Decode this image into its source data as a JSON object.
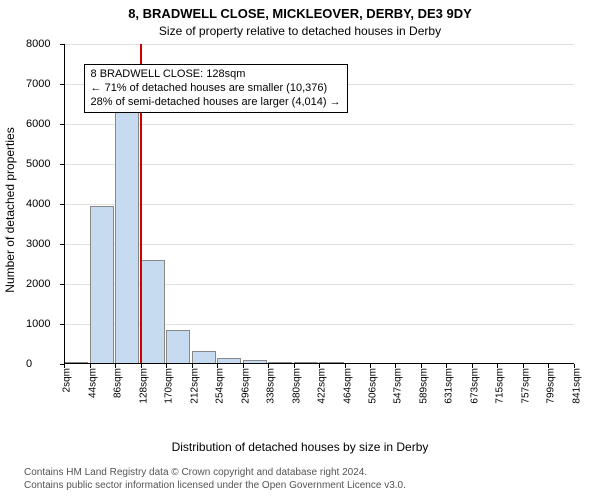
{
  "chart": {
    "type": "histogram",
    "title_main": "8, BRADWELL CLOSE, MICKLEOVER, DERBY, DE3 9DY",
    "title_sub": "Size of property relative to detached houses in Derby",
    "title_fontsize_main": 13,
    "title_fontsize_sub": 12,
    "ylabel": "Number of detached properties",
    "xlabel": "Distribution of detached houses by size in Derby",
    "label_fontsize": 12,
    "ylim": [
      0,
      8000
    ],
    "ytick_step": 1000,
    "background_color": "#ffffff",
    "grid_color": "#e0e0e0",
    "axis_color": "#000000",
    "bar_color": "#c6dbef",
    "bar_border_color": "#888888",
    "bar_width": 0.95,
    "highlight_value_sqm": 128,
    "highlight_line_color": "#d00000",
    "annotation": {
      "line1": "8 BRADWELL CLOSE: 128sqm",
      "line2": "← 71% of detached houses are smaller (10,376)",
      "line3": "28% of semi-detached houses are larger (4,014) →",
      "border_color": "#000000",
      "bg_color": "#ffffff",
      "fontsize": 11
    },
    "x_tick_labels": [
      "2sqm",
      "44sqm",
      "86sqm",
      "128sqm",
      "170sqm",
      "212sqm",
      "254sqm",
      "296sqm",
      "338sqm",
      "380sqm",
      "422sqm",
      "464sqm",
      "506sqm",
      "547sqm",
      "589sqm",
      "631sqm",
      "673sqm",
      "715sqm",
      "757sqm",
      "799sqm",
      "841sqm"
    ],
    "bin_left_edges_sqm": [
      2,
      44,
      86,
      128,
      170,
      212,
      254,
      296,
      338,
      380,
      422,
      464,
      506,
      547,
      589,
      631,
      673,
      715,
      757,
      799
    ],
    "bin_width_sqm": 42,
    "counts": [
      10,
      3950,
      6850,
      2600,
      850,
      320,
      140,
      90,
      60,
      40,
      20,
      0,
      0,
      0,
      0,
      0,
      0,
      0,
      0,
      0
    ],
    "xlim": [
      2,
      841
    ]
  },
  "footnote": {
    "line1": "Contains HM Land Registry data © Crown copyright and database right 2024.",
    "line2": "Contains public sector information licensed under the Open Government Licence v3.0.",
    "color": "#555555",
    "fontsize": 10
  }
}
